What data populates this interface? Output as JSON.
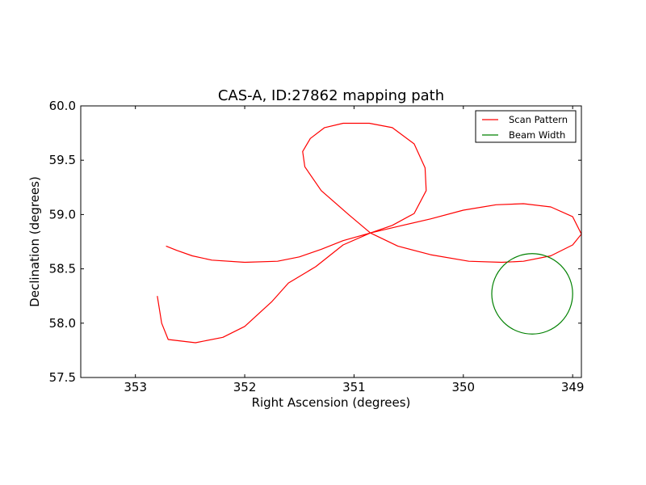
{
  "chart_data": {
    "type": "line",
    "title": "CAS-A, ID:27862 mapping path",
    "xlabel": "Right Ascension (degrees)",
    "ylabel": "Declination (degrees)",
    "xlim": [
      353.5,
      348.92
    ],
    "ylim": [
      57.5,
      60.0
    ],
    "x_inverted": true,
    "x_ticks": [
      353,
      352,
      351,
      350,
      349
    ],
    "y_ticks": [
      57.5,
      58.0,
      58.5,
      59.0,
      59.5,
      60.0
    ],
    "x_tick_labels": [
      "353",
      "352",
      "351",
      "350",
      "349"
    ],
    "y_tick_labels": [
      "57.5",
      "58.0",
      "58.5",
      "59.0",
      "59.5",
      "60.0"
    ],
    "grid": false,
    "legend_position": "top-right",
    "series": [
      {
        "name": "Scan Pattern",
        "color": "#ff0000",
        "x": [
          352.72,
          352.62,
          352.48,
          352.3,
          352.0,
          351.7,
          351.5,
          351.3,
          351.1,
          350.85,
          350.6,
          350.3,
          350.0,
          349.7,
          349.45,
          349.2,
          349.0,
          348.92,
          349.0,
          349.2,
          349.45,
          349.65,
          349.95,
          350.3,
          350.6,
          350.85,
          351.05,
          351.3,
          351.45,
          351.47,
          351.4,
          351.27,
          351.1,
          350.86,
          350.65,
          350.45,
          350.35,
          350.34,
          350.45,
          350.65,
          350.85,
          351.1,
          351.35,
          351.6,
          351.75,
          352.0,
          352.2,
          352.45,
          352.7,
          352.76,
          352.8
        ],
        "y": [
          58.71,
          58.67,
          58.62,
          58.58,
          58.56,
          58.57,
          58.61,
          58.68,
          58.76,
          58.83,
          58.89,
          58.96,
          59.04,
          59.09,
          59.1,
          59.07,
          58.98,
          58.82,
          58.72,
          58.62,
          58.57,
          58.56,
          58.57,
          58.63,
          58.71,
          58.83,
          59.0,
          59.22,
          59.44,
          59.58,
          59.7,
          59.8,
          59.84,
          59.84,
          59.8,
          59.65,
          59.43,
          59.22,
          59.01,
          58.9,
          58.83,
          58.72,
          58.52,
          58.37,
          58.2,
          57.97,
          57.87,
          57.82,
          57.85,
          58.0,
          58.25
        ]
      },
      {
        "name": "Beam Width",
        "color": "#008000",
        "circle": {
          "center_x": 349.37,
          "center_y": 58.27,
          "radius_deg": 0.37
        }
      }
    ]
  }
}
